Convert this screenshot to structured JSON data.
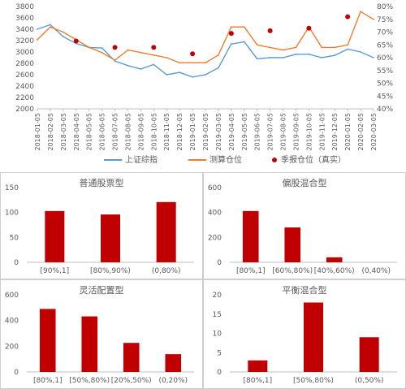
{
  "colors": {
    "index_line": "#5B9BD5",
    "position_line": "#ED7D31",
    "quarterly_dot": "#C00000",
    "bar": "#C00000",
    "axis": "#BFBFBF",
    "text": "#595959"
  },
  "chart_data": [
    {
      "type": "line",
      "title": "",
      "x": [
        "2018-01-05",
        "2018-02-05",
        "2018-03-05",
        "2018-04-05",
        "2018-05-05",
        "2018-06-05",
        "2018-07-05",
        "2018-08-05",
        "2018-09-05",
        "2018-10-05",
        "2018-11-05",
        "2018-12-05",
        "2019-01-05",
        "2019-02-05",
        "2019-03-05",
        "2019-04-05",
        "2019-05-05",
        "2019-06-05",
        "2019-07-05",
        "2019-08-05",
        "2019-09-05",
        "2019-10-05",
        "2019-11-05",
        "2019-12-05",
        "2020-01-05",
        "2020-02-05",
        "2020-03-05"
      ],
      "y_left": {
        "ylim": [
          2000,
          3800
        ],
        "ticks": [
          "2000",
          "2200",
          "2400",
          "2600",
          "2800",
          "3000",
          "3200",
          "3400",
          "3600",
          "3800"
        ]
      },
      "y_right": {
        "ylim": [
          40,
          80
        ],
        "ticks": [
          "40%",
          "45%",
          "50%",
          "55%",
          "60%",
          "65%",
          "70%",
          "75%",
          "80%"
        ]
      },
      "series": [
        {
          "name": "上证综指",
          "axis": "left",
          "values": [
            3400,
            3480,
            3270,
            3150,
            3080,
            3070,
            2840,
            2760,
            2700,
            2780,
            2600,
            2640,
            2560,
            2600,
            2720,
            3140,
            3180,
            2880,
            2900,
            2900,
            2960,
            2960,
            2900,
            2940,
            3050,
            3000,
            2900
          ]
        },
        {
          "name": "测算仓位",
          "axis": "right",
          "values": [
            67,
            72,
            70,
            67,
            64,
            62,
            59,
            63,
            62,
            61,
            60,
            58,
            58,
            58,
            61,
            72,
            72,
            65,
            64,
            63,
            64,
            72,
            64,
            64,
            65,
            78,
            75
          ]
        },
        {
          "name": "季报仓位(真实)",
          "axis": "right",
          "style": "dot",
          "x": [
            "2018-04-05",
            "2018-07-05",
            "2018-10-05",
            "2019-01-05",
            "2019-04-05",
            "2019-07-05",
            "2019-10-05",
            "2020-01-05"
          ],
          "values": [
            66.5,
            64,
            64,
            61.5,
            69.5,
            70.5,
            71.5,
            76
          ]
        }
      ],
      "legend": [
        "上证综指",
        "测算仓位",
        "季报仓位（真实）"
      ],
      "legend_position": "bottom"
    },
    {
      "type": "bar",
      "title": "普通股票型",
      "categories": [
        "[90%,1]",
        "[80%,90%)",
        "(0,80%)"
      ],
      "values": [
        103,
        96,
        121
      ],
      "ylim": [
        0,
        150
      ],
      "yticks": [
        "0",
        "50",
        "100",
        "150"
      ]
    },
    {
      "type": "bar",
      "title": "偏股混合型",
      "categories": [
        "[80%,1]",
        "[60%,80%)",
        "[40%,60%)",
        "(0,40%)"
      ],
      "values": [
        412,
        280,
        40,
        0
      ],
      "ylim": [
        0,
        600
      ],
      "yticks": [
        "0",
        "200",
        "400",
        "600"
      ]
    },
    {
      "type": "bar",
      "title": "灵活配置型",
      "categories": [
        "[80%,1]",
        "[50%,80%)",
        "[20%,50%)",
        "(0,20%)"
      ],
      "values": [
        490,
        432,
        226,
        138
      ],
      "ylim": [
        0,
        600
      ],
      "yticks": [
        "0",
        "200",
        "400",
        "600"
      ]
    },
    {
      "type": "bar",
      "title": "平衡混合型",
      "categories": [
        "[80%,1]",
        "[50%,80%)",
        "(0,50%)"
      ],
      "values": [
        3,
        18,
        9
      ],
      "ylim": [
        0,
        20
      ],
      "yticks": [
        "0",
        "5",
        "10",
        "15",
        "20"
      ]
    }
  ]
}
